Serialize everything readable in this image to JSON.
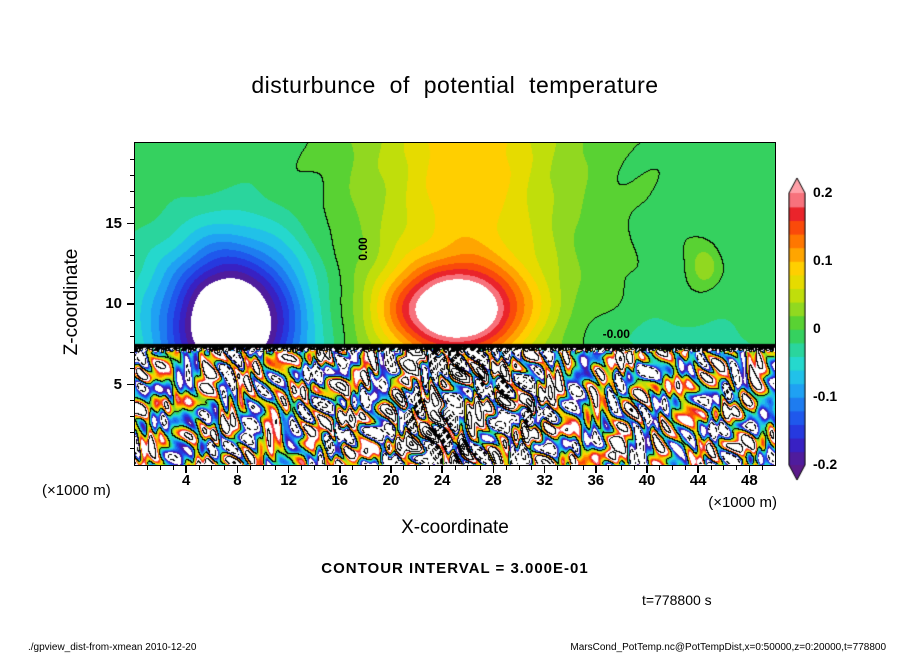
{
  "footer": {
    "left": "./gpview_dist-from-xmean  2010-12-20",
    "right": "MarsCond_PotTemp.nc@PotTempDist,x=0:50000,z=0:20000,t=778800"
  },
  "chart_data": {
    "type": "heatmap",
    "subtype": "filled-contour-with-line-contours",
    "title": "disturbunce of potential temperature",
    "xlabel": "X-coordinate",
    "ylabel": "Z-coordinate",
    "x_unit_label": "(×1000 m)",
    "z_unit_label": "(×1000 m)",
    "x_range": [
      0,
      50
    ],
    "z_range": [
      0,
      20
    ],
    "x_ticks": [
      4,
      8,
      12,
      16,
      20,
      24,
      28,
      32,
      36,
      40,
      44,
      48
    ],
    "z_ticks": [
      5,
      10,
      15
    ],
    "grid": false,
    "interface_z": 7.4,
    "contour_interval": 0.3,
    "contour_interval_label": "CONTOUR INTERVAL = 3.000E-01",
    "time_label": "t=778800 s",
    "contour_line_style": {
      "positive": "solid",
      "zero": "solid",
      "negative": "dashed"
    },
    "contour_labels": [
      {
        "text": "0.00",
        "x": 17.8,
        "z": 13.4,
        "rotate": -90
      },
      {
        "text": "-0.00",
        "x": 37.6,
        "z": 8.15,
        "rotate": 0
      }
    ],
    "colorbar": {
      "min": -0.2,
      "max": 0.2,
      "ticks": [
        0.2,
        0.1,
        0,
        -0.1,
        -0.2
      ],
      "tick_labels": [
        "0.2",
        "0.1",
        "0",
        "-0.1",
        "-0.2"
      ],
      "n_steps": 20,
      "out_of_range_color": "#ffffff",
      "stops": [
        [
          0.0,
          "#5a1a8a"
        ],
        [
          0.07,
          "#3a1fc0"
        ],
        [
          0.14,
          "#2040e8"
        ],
        [
          0.22,
          "#1e78f0"
        ],
        [
          0.3,
          "#1fb4f5"
        ],
        [
          0.37,
          "#24d8d2"
        ],
        [
          0.44,
          "#2cd48f"
        ],
        [
          0.5,
          "#3ccf3c"
        ],
        [
          0.57,
          "#8cd822"
        ],
        [
          0.65,
          "#d8e000"
        ],
        [
          0.72,
          "#ffd300"
        ],
        [
          0.79,
          "#ff9900"
        ],
        [
          0.86,
          "#ff5500"
        ],
        [
          0.93,
          "#e8202e"
        ],
        [
          1.0,
          "#ffa0a8"
        ]
      ]
    },
    "field_model": {
      "background": -0.006,
      "wiggle": {
        "amp": 0.004,
        "kx": 1.1,
        "kz": 0.8
      },
      "gaussians": [
        {
          "amp": 0.21,
          "x": 25,
          "z": 9.6,
          "sx2": 28,
          "sz2": 7
        },
        {
          "amp": 0.1,
          "x": 26,
          "z": 20,
          "sx2": 60,
          "sz2": 400
        },
        {
          "amp": -0.27,
          "x": 7.5,
          "z": 8.8,
          "sx2": 30,
          "sz2": 24
        },
        {
          "amp": 0.04,
          "x": 44.5,
          "z": 12.3,
          "sx2": 1.2,
          "sz2": 1.6
        },
        {
          "amp": -0.02,
          "x": 41,
          "z": 7.8,
          "sx2": 120,
          "sz2": 4
        }
      ],
      "interface_noise": {
        "amp": 1.1,
        "kx": 12,
        "sz2": 0.06
      },
      "turbulence": {
        "terms": [
          {
            "w": 1.0,
            "kx": 1.15,
            "kz": -1.9,
            "mkx": 0.45,
            "mkz": 0.6,
            "ma": 2.2,
            "ph": 0
          },
          {
            "w": 0.8,
            "kx": 2.6,
            "kz": 2.1,
            "mkx": 0.7,
            "mkz": 1.1,
            "ma": 1.8,
            "ph": 1.0
          },
          {
            "w": 0.6,
            "kx": 4.9,
            "kz": 3.4,
            "mkx": 1.3,
            "mkz": -0.9,
            "ma": 2.4,
            "ph": 2.0
          }
        ],
        "env_base": 0.4,
        "env_bump": 0.45,
        "env_x": 25,
        "env_sx2": 55,
        "env_wave_amp": 0.12,
        "env_wave_k": 0.8,
        "env_wave_ph": 2.0
      }
    }
  }
}
